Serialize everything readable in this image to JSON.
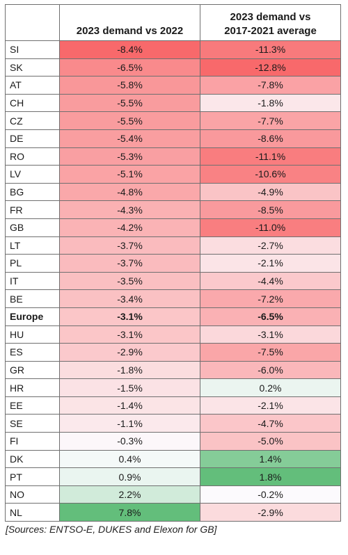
{
  "table": {
    "headers": [
      "",
      "2023 demand vs 2022",
      "2023 demand vs\n2017-2021 average"
    ],
    "rows": [
      {
        "country": "SI",
        "v2022": "-8.4%",
        "vavg": "-11.3%"
      },
      {
        "country": "SK",
        "v2022": "-6.5%",
        "vavg": "-12.8%"
      },
      {
        "country": "AT",
        "v2022": "-5.8%",
        "vavg": "-7.8%"
      },
      {
        "country": "CH",
        "v2022": "-5.5%",
        "vavg": "-1.8%"
      },
      {
        "country": "CZ",
        "v2022": "-5.5%",
        "vavg": "-7.7%"
      },
      {
        "country": "DE",
        "v2022": "-5.4%",
        "vavg": "-8.6%"
      },
      {
        "country": "RO",
        "v2022": "-5.3%",
        "vavg": "-11.1%"
      },
      {
        "country": "LV",
        "v2022": "-5.1%",
        "vavg": "-10.6%"
      },
      {
        "country": "BG",
        "v2022": "-4.8%",
        "vavg": "-4.9%"
      },
      {
        "country": "FR",
        "v2022": "-4.3%",
        "vavg": "-8.5%"
      },
      {
        "country": "GB",
        "v2022": "-4.2%",
        "vavg": "-11.0%"
      },
      {
        "country": "LT",
        "v2022": "-3.7%",
        "vavg": "-2.7%"
      },
      {
        "country": "PL",
        "v2022": "-3.7%",
        "vavg": "-2.1%"
      },
      {
        "country": "IT",
        "v2022": "-3.5%",
        "vavg": "-4.4%"
      },
      {
        "country": "BE",
        "v2022": "-3.4%",
        "vavg": "-7.2%"
      },
      {
        "country": "Europe",
        "v2022": "-3.1%",
        "vavg": "-6.5%",
        "bold": true
      },
      {
        "country": "HU",
        "v2022": "-3.1%",
        "vavg": "-3.1%"
      },
      {
        "country": "ES",
        "v2022": "-2.9%",
        "vavg": "-7.5%"
      },
      {
        "country": "GR",
        "v2022": "-1.8%",
        "vavg": "-6.0%"
      },
      {
        "country": "HR",
        "v2022": "-1.5%",
        "vavg": "0.2%"
      },
      {
        "country": "EE",
        "v2022": "-1.4%",
        "vavg": "-2.1%"
      },
      {
        "country": "SE",
        "v2022": "-1.1%",
        "vavg": "-4.7%"
      },
      {
        "country": "FI",
        "v2022": "-0.3%",
        "vavg": "-5.0%"
      },
      {
        "country": "DK",
        "v2022": "0.4%",
        "vavg": "1.4%"
      },
      {
        "country": "PT",
        "v2022": "0.9%",
        "vavg": "1.8%"
      },
      {
        "country": "NO",
        "v2022": "2.2%",
        "vavg": "-0.2%"
      },
      {
        "country": "NL",
        "v2022": "7.8%",
        "vavg": "-2.9%"
      }
    ]
  },
  "chart_data": {
    "type": "heatmap",
    "x": [
      "2023 demand vs 2022",
      "2023 demand vs 2017-2021 average"
    ],
    "categories": [
      "SI",
      "SK",
      "AT",
      "CH",
      "CZ",
      "DE",
      "RO",
      "LV",
      "BG",
      "FR",
      "GB",
      "LT",
      "PL",
      "IT",
      "BE",
      "Europe",
      "HU",
      "ES",
      "GR",
      "HR",
      "EE",
      "SE",
      "FI",
      "DK",
      "PT",
      "NO",
      "NL"
    ],
    "series": [
      {
        "name": "2023 demand vs 2022",
        "values": [
          -8.4,
          -6.5,
          -5.8,
          -5.5,
          -5.5,
          -5.4,
          -5.3,
          -5.1,
          -4.8,
          -4.3,
          -4.2,
          -3.7,
          -3.7,
          -3.5,
          -3.4,
          -3.1,
          -3.1,
          -2.9,
          -1.8,
          -1.5,
          -1.4,
          -1.1,
          -0.3,
          0.4,
          0.9,
          2.2,
          7.8
        ]
      },
      {
        "name": "2023 demand vs 2017-2021 average",
        "values": [
          -11.3,
          -12.8,
          -7.8,
          -1.8,
          -7.7,
          -8.6,
          -11.1,
          -10.6,
          -4.9,
          -8.5,
          -11.0,
          -2.7,
          -2.1,
          -4.4,
          -7.2,
          -6.5,
          -3.1,
          -7.5,
          -6.0,
          0.2,
          -2.1,
          -4.7,
          -5.0,
          1.4,
          1.8,
          -0.2,
          -2.9
        ]
      }
    ],
    "colors": {
      "negative": "#f8696b",
      "neutral": "#fcfcff",
      "positive": "#63be7b"
    }
  },
  "source": "[Sources: ENTSO-E, DUKES and Elexon for GB]"
}
